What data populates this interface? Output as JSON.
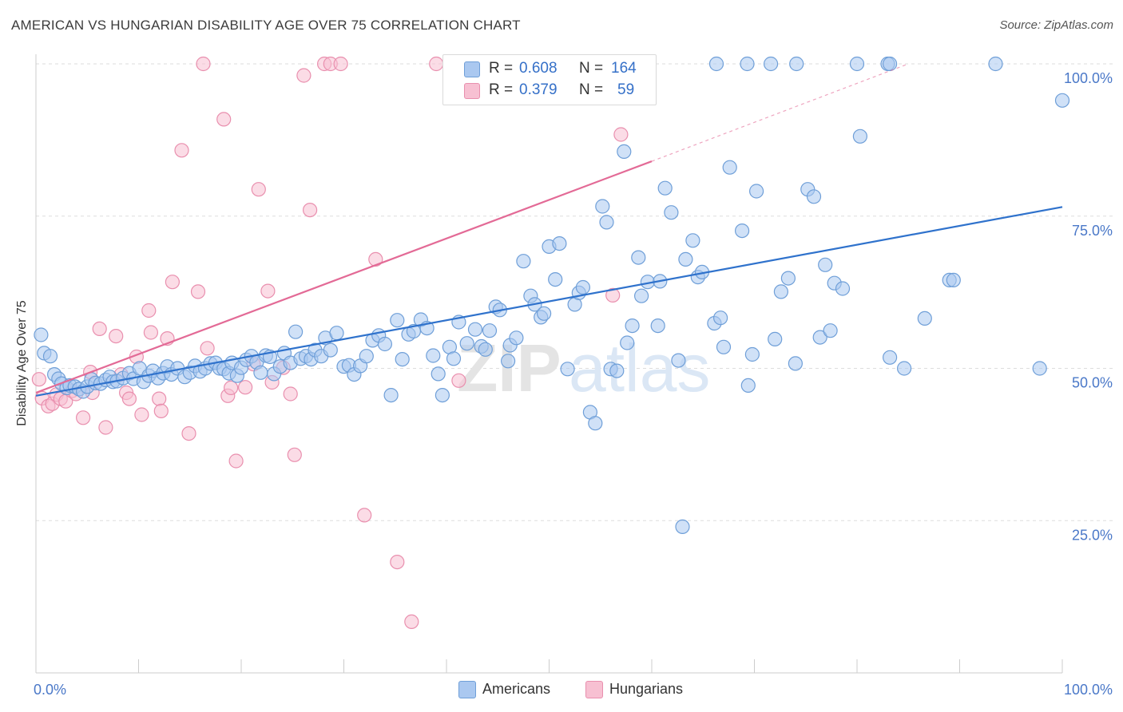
{
  "header": {
    "title": "AMERICAN VS HUNGARIAN DISABILITY AGE OVER 75 CORRELATION CHART",
    "source": "Source: ZipAtlas.com"
  },
  "legend": {
    "r_label": "R =",
    "n_label": "N =",
    "americans": {
      "r": "0.608",
      "n": "164"
    },
    "hungarians": {
      "r": "0.379",
      "n": "59"
    }
  },
  "bottom_legend": {
    "americans": "Americans",
    "hungarians": "Hungarians"
  },
  "watermark": {
    "zip": "ZIP",
    "atlas": "atlas"
  },
  "colors": {
    "americans_fill": "#aac8f0",
    "americans_stroke": "#6f9fd8",
    "americans_line": "#2f72cc",
    "hungarians_fill": "#f7c0d2",
    "hungarians_stroke": "#e98fae",
    "hungarians_line": "#e36a96",
    "axis_text": "#4a78c8",
    "grid": "#dddddd"
  },
  "chart_data": {
    "type": "scatter",
    "title": "AMERICAN VS HUNGARIAN DISABILITY AGE OVER 75 CORRELATION CHART",
    "xlabel": "",
    "ylabel": "Disability Age Over 75",
    "xlim": [
      0,
      100
    ],
    "ylim": [
      0,
      100
    ],
    "x_tick_labels": [
      "0.0%",
      "100.0%"
    ],
    "y_ticks": [
      25,
      50,
      75,
      100
    ],
    "y_tick_labels": [
      "25.0%",
      "50.0%",
      "75.0%",
      "100.0%"
    ],
    "grid": "horizontal dashed",
    "legend_position": "top-center",
    "series": [
      {
        "name": "Americans",
        "r": 0.608,
        "n": 164,
        "trend": {
          "x": [
            0,
            100
          ],
          "y": [
            45.5,
            76.5
          ]
        },
        "points": [
          [
            0.5,
            55.5
          ],
          [
            0.8,
            52.5
          ],
          [
            1.4,
            52.0
          ],
          [
            1.8,
            49.0
          ],
          [
            2.2,
            48.3
          ],
          [
            2.5,
            47.5
          ],
          [
            3.0,
            46.8
          ],
          [
            3.3,
            47.2
          ],
          [
            3.8,
            47.0
          ],
          [
            4.2,
            46.6
          ],
          [
            4.6,
            46.2
          ],
          [
            5.0,
            47.0
          ],
          [
            5.4,
            48.2
          ],
          [
            5.8,
            47.6
          ],
          [
            6.3,
            47.5
          ],
          [
            6.8,
            48.1
          ],
          [
            7.2,
            48.6
          ],
          [
            7.5,
            47.8
          ],
          [
            7.9,
            47.9
          ],
          [
            8.5,
            48.4
          ],
          [
            9.1,
            49.2
          ],
          [
            9.5,
            48.3
          ],
          [
            10.1,
            50.0
          ],
          [
            10.5,
            47.8
          ],
          [
            11.0,
            48.8
          ],
          [
            11.4,
            49.6
          ],
          [
            11.9,
            48.4
          ],
          [
            12.4,
            49.2
          ],
          [
            12.8,
            50.3
          ],
          [
            13.2,
            49.0
          ],
          [
            13.8,
            50.0
          ],
          [
            14.5,
            48.6
          ],
          [
            15.0,
            49.3
          ],
          [
            15.5,
            50.4
          ],
          [
            16.0,
            49.5
          ],
          [
            16.5,
            50.0
          ],
          [
            17.0,
            50.8
          ],
          [
            17.5,
            50.9
          ],
          [
            17.9,
            50.0
          ],
          [
            18.3,
            49.9
          ],
          [
            18.8,
            49.2
          ],
          [
            19.1,
            50.9
          ],
          [
            19.6,
            48.8
          ],
          [
            20.0,
            50.1
          ],
          [
            20.5,
            51.4
          ],
          [
            21.0,
            52.0
          ],
          [
            21.5,
            51.0
          ],
          [
            21.9,
            49.3
          ],
          [
            22.4,
            52.1
          ],
          [
            22.8,
            51.9
          ],
          [
            23.2,
            49.1
          ],
          [
            23.8,
            50.3
          ],
          [
            24.2,
            52.5
          ],
          [
            24.8,
            50.9
          ],
          [
            25.3,
            56.0
          ],
          [
            25.8,
            51.6
          ],
          [
            26.3,
            52.0
          ],
          [
            26.8,
            51.5
          ],
          [
            27.2,
            53.0
          ],
          [
            27.8,
            52.0
          ],
          [
            28.2,
            55.0
          ],
          [
            28.7,
            53.0
          ],
          [
            29.3,
            55.8
          ],
          [
            30.0,
            50.3
          ],
          [
            30.5,
            50.5
          ],
          [
            31.0,
            49.0
          ],
          [
            31.6,
            50.4
          ],
          [
            32.2,
            52.0
          ],
          [
            32.8,
            54.6
          ],
          [
            33.4,
            55.4
          ],
          [
            34.0,
            54.0
          ],
          [
            34.6,
            45.6
          ],
          [
            35.2,
            57.9
          ],
          [
            35.7,
            51.5
          ],
          [
            36.3,
            55.6
          ],
          [
            36.8,
            56.1
          ],
          [
            37.5,
            58.0
          ],
          [
            38.1,
            56.6
          ],
          [
            38.7,
            52.1
          ],
          [
            39.2,
            49.1
          ],
          [
            39.6,
            45.6
          ],
          [
            40.3,
            53.5
          ],
          [
            40.7,
            51.6
          ],
          [
            41.2,
            57.6
          ],
          [
            42.0,
            54.1
          ],
          [
            42.8,
            56.4
          ],
          [
            43.4,
            53.6
          ],
          [
            43.8,
            53.1
          ],
          [
            44.2,
            56.2
          ],
          [
            44.8,
            60.1
          ],
          [
            45.2,
            59.6
          ],
          [
            46.0,
            51.2
          ],
          [
            46.2,
            53.8
          ],
          [
            46.8,
            55.0
          ],
          [
            47.5,
            67.6
          ],
          [
            48.2,
            61.9
          ],
          [
            48.6,
            60.5
          ],
          [
            49.2,
            58.4
          ],
          [
            49.5,
            59.0
          ],
          [
            50.0,
            70.0
          ],
          [
            50.6,
            64.6
          ],
          [
            51.0,
            70.5
          ],
          [
            51.8,
            49.9
          ],
          [
            52.5,
            60.5
          ],
          [
            52.9,
            62.4
          ],
          [
            53.3,
            63.3
          ],
          [
            54.0,
            42.8
          ],
          [
            54.5,
            41.0
          ],
          [
            55.2,
            76.6
          ],
          [
            55.6,
            74.0
          ],
          [
            56.0,
            49.9
          ],
          [
            56.6,
            49.6
          ],
          [
            57.3,
            85.6
          ],
          [
            57.6,
            54.2
          ],
          [
            58.1,
            57.0
          ],
          [
            58.7,
            68.2
          ],
          [
            59.0,
            61.9
          ],
          [
            59.6,
            64.2
          ],
          [
            60.6,
            57.0
          ],
          [
            60.8,
            64.3
          ],
          [
            61.3,
            79.6
          ],
          [
            61.9,
            75.6
          ],
          [
            62.6,
            51.3
          ],
          [
            63.0,
            24.0
          ],
          [
            63.3,
            67.9
          ],
          [
            64.0,
            71.0
          ],
          [
            64.5,
            65.0
          ],
          [
            64.9,
            65.8
          ],
          [
            66.1,
            57.4
          ],
          [
            66.7,
            58.3
          ],
          [
            67.0,
            53.5
          ],
          [
            67.6,
            83.0
          ],
          [
            68.8,
            72.6
          ],
          [
            69.4,
            47.2
          ],
          [
            69.8,
            52.3
          ],
          [
            70.2,
            79.1
          ],
          [
            72.0,
            54.8
          ],
          [
            72.6,
            62.6
          ],
          [
            73.3,
            64.8
          ],
          [
            74.0,
            50.8
          ],
          [
            75.2,
            79.4
          ],
          [
            75.8,
            78.2
          ],
          [
            76.4,
            55.1
          ],
          [
            76.9,
            67.0
          ],
          [
            77.4,
            56.2
          ],
          [
            77.8,
            64.0
          ],
          [
            78.6,
            63.1
          ],
          [
            80.3,
            88.1
          ],
          [
            83.2,
            51.8
          ],
          [
            84.6,
            50.0
          ],
          [
            86.6,
            58.2
          ],
          [
            89.0,
            64.5
          ],
          [
            89.4,
            64.5
          ],
          [
            97.8,
            50.0
          ],
          [
            100.0,
            94.0
          ],
          [
            66.3,
            100.0
          ],
          [
            69.3,
            100.0
          ],
          [
            71.6,
            100.0
          ],
          [
            74.1,
            100.0
          ],
          [
            80.0,
            100.0
          ],
          [
            83.0,
            100.0
          ],
          [
            83.2,
            100.0
          ],
          [
            93.5,
            100.0
          ],
          [
            40.7,
            100.0
          ]
        ]
      },
      {
        "name": "Hungarians",
        "r": 0.379,
        "n": 59,
        "trend": {
          "x": [
            0,
            60
          ],
          "y": [
            46.0,
            84.0
          ]
        },
        "trend_extension": {
          "x": [
            60,
            85
          ],
          "y": [
            84.0,
            100.0
          ]
        },
        "points": [
          [
            0.3,
            48.2
          ],
          [
            0.6,
            45.1
          ],
          [
            1.2,
            43.8
          ],
          [
            1.6,
            44.2
          ],
          [
            2.0,
            45.7
          ],
          [
            2.4,
            45.0
          ],
          [
            2.9,
            44.6
          ],
          [
            3.5,
            46.3
          ],
          [
            3.9,
            45.8
          ],
          [
            4.6,
            41.9
          ],
          [
            5.3,
            49.4
          ],
          [
            5.5,
            46.0
          ],
          [
            6.2,
            56.5
          ],
          [
            6.8,
            40.3
          ],
          [
            7.8,
            55.3
          ],
          [
            8.3,
            49.0
          ],
          [
            8.8,
            46.0
          ],
          [
            9.1,
            45.0
          ],
          [
            9.8,
            51.9
          ],
          [
            10.3,
            42.4
          ],
          [
            11.0,
            59.5
          ],
          [
            11.2,
            55.9
          ],
          [
            12.0,
            45.0
          ],
          [
            12.2,
            43.0
          ],
          [
            12.8,
            54.9
          ],
          [
            13.3,
            64.2
          ],
          [
            14.2,
            85.8
          ],
          [
            14.9,
            39.3
          ],
          [
            15.8,
            62.6
          ],
          [
            16.3,
            100.0
          ],
          [
            16.7,
            53.3
          ],
          [
            18.3,
            90.9
          ],
          [
            18.7,
            45.5
          ],
          [
            19.0,
            46.8
          ],
          [
            19.5,
            34.8
          ],
          [
            20.4,
            46.9
          ],
          [
            21.2,
            50.7
          ],
          [
            21.7,
            79.4
          ],
          [
            22.6,
            62.7
          ],
          [
            23.0,
            47.7
          ],
          [
            24.1,
            50.1
          ],
          [
            24.8,
            45.8
          ],
          [
            25.2,
            35.8
          ],
          [
            26.1,
            98.1
          ],
          [
            26.7,
            76.0
          ],
          [
            28.1,
            100.0
          ],
          [
            28.7,
            100.0
          ],
          [
            29.7,
            100.0
          ],
          [
            32.0,
            25.9
          ],
          [
            33.1,
            67.9
          ],
          [
            35.2,
            18.2
          ],
          [
            36.6,
            8.4
          ],
          [
            39.0,
            100.0
          ],
          [
            40.6,
            100.0
          ],
          [
            41.2,
            48.0
          ],
          [
            52.2,
            100.0
          ],
          [
            54.0,
            100.0
          ],
          [
            56.2,
            62.0
          ],
          [
            57.0,
            88.4
          ]
        ]
      }
    ]
  }
}
